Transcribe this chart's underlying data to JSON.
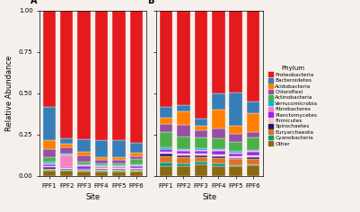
{
  "phylums": [
    "Other",
    "Cyanobacteria",
    "Euryarchaeota",
    "Spirochaetes",
    "Firmicutes",
    "Planctomycetes",
    "Fibrobacteres",
    "Verrucomicrobia",
    "Actinobacteria",
    "Chloroflexi",
    "Acidobacteria",
    "Bacteroidetes",
    "Proteobacteria"
  ],
  "colors": [
    "#8b6914",
    "#009b77",
    "#e07020",
    "#191970",
    "#ffc0cb",
    "#a020f0",
    "#f781bf",
    "#00bcd4",
    "#4daf4a",
    "#984ea3",
    "#ff7f00",
    "#377eb8",
    "#e41a1c"
  ],
  "sites": [
    "FPF1",
    "FPF2",
    "FPF3",
    "FPF4",
    "FPF5",
    "FPF6"
  ],
  "panel_A": [
    [
      0.03,
      0.005,
      0.01,
      0.01,
      0.005,
      0.01,
      0.005,
      0.01,
      0.03,
      0.05,
      0.05,
      0.2,
      0.585
    ],
    [
      0.03,
      0.005,
      0.005,
      0.005,
      0.005,
      0.005,
      0.07,
      0.005,
      0.005,
      0.04,
      0.02,
      0.03,
      0.775
    ],
    [
      0.025,
      0.005,
      0.005,
      0.005,
      0.005,
      0.015,
      0.005,
      0.005,
      0.015,
      0.04,
      0.02,
      0.075,
      0.775
    ],
    [
      0.025,
      0.005,
      0.01,
      0.005,
      0.005,
      0.005,
      0.005,
      0.005,
      0.01,
      0.02,
      0.02,
      0.1,
      0.785
    ],
    [
      0.025,
      0.005,
      0.01,
      0.005,
      0.005,
      0.005,
      0.005,
      0.005,
      0.01,
      0.02,
      0.02,
      0.1,
      0.785
    ],
    [
      0.025,
      0.005,
      0.01,
      0.005,
      0.005,
      0.01,
      0.005,
      0.005,
      0.03,
      0.02,
      0.02,
      0.06,
      0.8
    ]
  ],
  "panel_B": [
    [
      0.06,
      0.02,
      0.04,
      0.015,
      0.01,
      0.015,
      0.005,
      0.01,
      0.09,
      0.05,
      0.04,
      0.065,
      0.58
    ],
    [
      0.06,
      0.015,
      0.04,
      0.01,
      0.01,
      0.015,
      0.005,
      0.01,
      0.075,
      0.07,
      0.08,
      0.04,
      0.57
    ],
    [
      0.07,
      0.015,
      0.03,
      0.01,
      0.01,
      0.015,
      0.005,
      0.015,
      0.065,
      0.04,
      0.03,
      0.04,
      0.655
    ],
    [
      0.06,
      0.015,
      0.035,
      0.01,
      0.01,
      0.02,
      0.005,
      0.01,
      0.06,
      0.06,
      0.115,
      0.1,
      0.5
    ],
    [
      0.06,
      0.005,
      0.035,
      0.01,
      0.01,
      0.015,
      0.005,
      0.01,
      0.055,
      0.05,
      0.05,
      0.2,
      0.495
    ],
    [
      0.065,
      0.005,
      0.035,
      0.01,
      0.01,
      0.02,
      0.005,
      0.005,
      0.08,
      0.03,
      0.115,
      0.07,
      0.55
    ]
  ],
  "xlabel": "Site",
  "ylabel": "Relative Abundance",
  "legend_title": "Phylum",
  "legend_phylums": [
    "Proteobacteria",
    "Bacteroidetes",
    "Acidobacteria",
    "Chloroflexi",
    "Actinobacteria",
    "Verrucomicrobia",
    "Fibrobacteres",
    "Planctomycetes",
    "Firmicutes",
    "Spirochaetes",
    "Euryarchaeota",
    "Cyanobacteria",
    "Other"
  ],
  "legend_colors": [
    "#e41a1c",
    "#377eb8",
    "#ff7f00",
    "#984ea3",
    "#4daf4a",
    "#00bcd4",
    "#f781bf",
    "#a020f0",
    "#ffc0cb",
    "#191970",
    "#e07020",
    "#009b77",
    "#8b6914"
  ],
  "label_A": "A",
  "label_B": "B",
  "ylim": [
    0,
    1.0
  ],
  "yticks": [
    0.0,
    0.25,
    0.5,
    0.75,
    1.0
  ],
  "bg_color": "#f5f0eb"
}
